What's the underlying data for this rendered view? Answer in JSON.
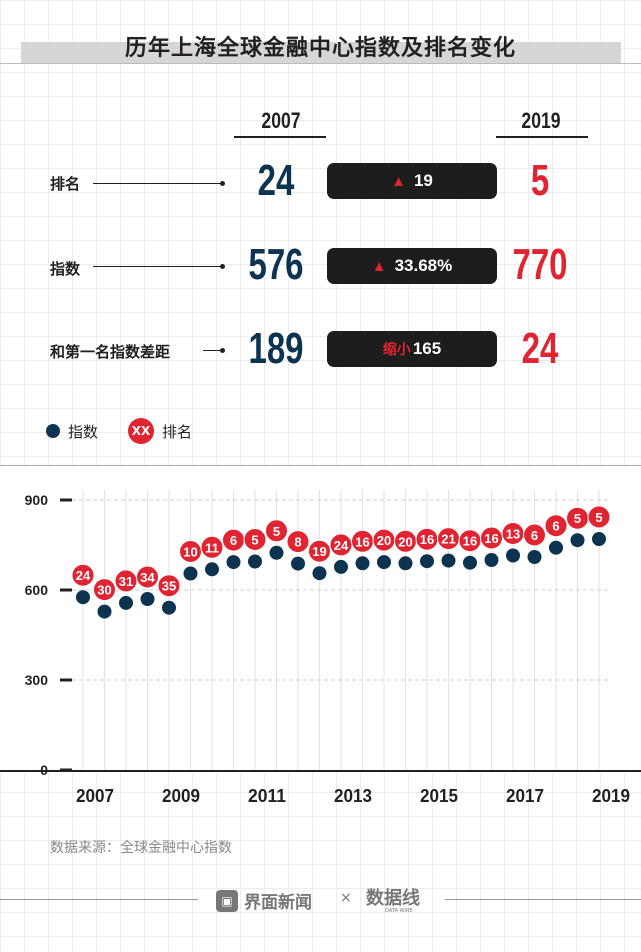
{
  "title": "历年上海全球金融中心指数及排名变化",
  "summary": {
    "year_start": "2007",
    "year_end": "2019",
    "rows": [
      {
        "label": "排名",
        "start": "24",
        "change_prefix": "",
        "change_icon": "arrow-up-icon",
        "change": "19",
        "end": "5"
      },
      {
        "label": "指数",
        "start": "576",
        "change_prefix": "",
        "change_icon": "arrow-up-icon",
        "change": "33.68%",
        "end": "770"
      },
      {
        "label": "和第一名指数差距",
        "start": "189",
        "change_prefix": "缩小",
        "change_icon": "",
        "change": "165",
        "end": "24"
      }
    ]
  },
  "legend": {
    "index_label": "指数",
    "rank_marker": "XX",
    "rank_label": "排名"
  },
  "colors": {
    "index": "#0c3350",
    "rank": "#e02432"
  },
  "chart_data": {
    "type": "scatter",
    "x": [
      2007,
      2007.5,
      2008,
      2008.5,
      2009,
      2009.5,
      2010,
      2010.5,
      2011,
      2011.5,
      2012,
      2012.5,
      2013,
      2013.5,
      2014,
      2014.5,
      2015,
      2015.5,
      2016,
      2016.5,
      2017,
      2017.5,
      2018,
      2018.5,
      2019
    ],
    "series": [
      {
        "name": "指数",
        "values": [
          576,
          528,
          557,
          570,
          541,
          655,
          669,
          693,
          695,
          724,
          688,
          656,
          677,
          689,
          693,
          689,
          696,
          698,
          691,
          700,
          715,
          710,
          741,
          766,
          770
        ]
      },
      {
        "name": "排名",
        "values": [
          24,
          30,
          31,
          34,
          35,
          10,
          11,
          6,
          5,
          5,
          8,
          19,
          24,
          16,
          20,
          20,
          16,
          21,
          16,
          16,
          13,
          6,
          6,
          5,
          5
        ]
      }
    ],
    "ylim": [
      0,
      900
    ],
    "yticks": [
      "0",
      "300",
      "600",
      "900"
    ],
    "xticks": [
      "2007",
      "2009",
      "2011",
      "2013",
      "2015",
      "2017",
      "2019"
    ],
    "grid": true
  },
  "source": "数据来源：全球金融中心指数",
  "footer": {
    "brand1": "界面新闻",
    "sep": "×",
    "brand2": "数据线",
    "brand2_sub": "DATA WIRE"
  }
}
